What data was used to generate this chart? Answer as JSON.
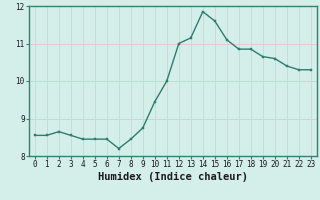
{
  "x": [
    0,
    1,
    2,
    3,
    4,
    5,
    6,
    7,
    8,
    9,
    10,
    11,
    12,
    13,
    14,
    15,
    16,
    17,
    18,
    19,
    20,
    21,
    22,
    23
  ],
  "y": [
    8.55,
    8.55,
    8.65,
    8.55,
    8.45,
    8.45,
    8.45,
    8.2,
    8.45,
    8.75,
    9.45,
    10.0,
    11.0,
    11.15,
    11.85,
    11.6,
    11.1,
    10.85,
    10.85,
    10.65,
    10.6,
    10.4,
    10.3,
    10.3
  ],
  "line_color": "#2e7d6e",
  "marker_color": "#2e7d6e",
  "bg_color": "#d4eeea",
  "grid_color_h": "#e8c8c8",
  "grid_color_v": "#c8dbd8",
  "xlabel": "Humidex (Indice chaleur)",
  "ylim": [
    8.0,
    12.0
  ],
  "xlim": [
    -0.5,
    23.5
  ],
  "yticks": [
    8,
    9,
    10,
    11,
    12
  ],
  "xticks": [
    0,
    1,
    2,
    3,
    4,
    5,
    6,
    7,
    8,
    9,
    10,
    11,
    12,
    13,
    14,
    15,
    16,
    17,
    18,
    19,
    20,
    21,
    22,
    23
  ],
  "tick_fontsize": 5.5,
  "xlabel_fontsize": 7.5,
  "spine_color": "#3a8070"
}
